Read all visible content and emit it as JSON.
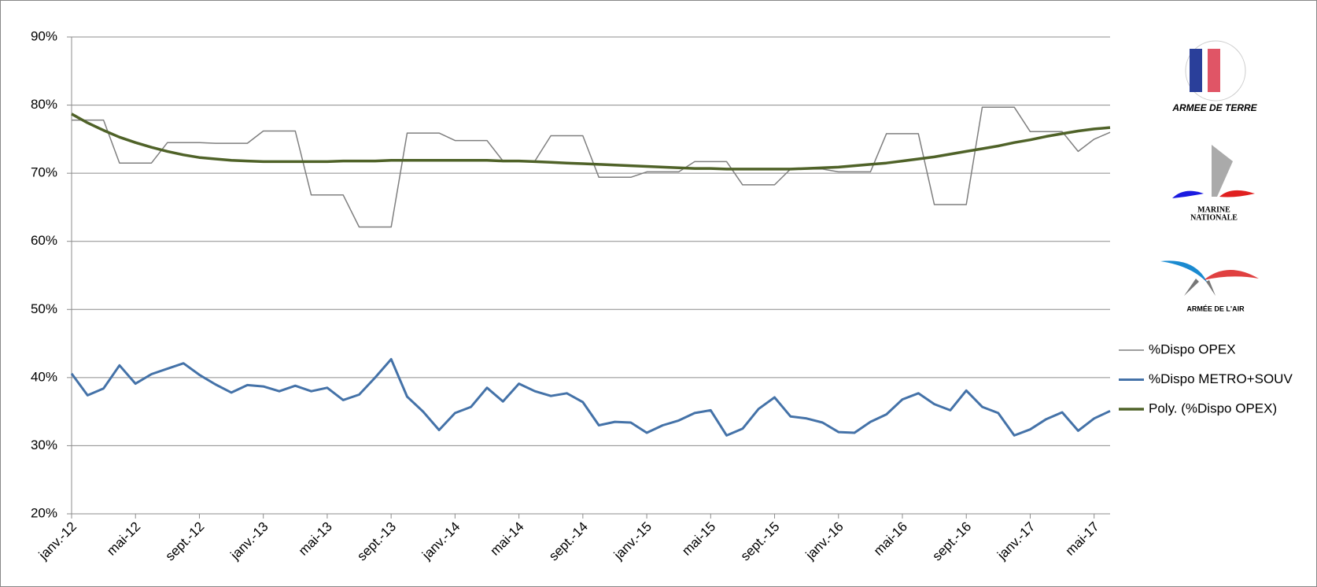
{
  "chart_data": {
    "type": "line",
    "categories": [
      "janv.-12",
      null,
      null,
      null,
      "mai-12",
      null,
      null,
      null,
      "sept.-12",
      null,
      null,
      null,
      "janv.-13",
      null,
      null,
      null,
      "mai-13",
      null,
      null,
      null,
      "sept.-13",
      null,
      null,
      null,
      "janv.-14",
      null,
      null,
      null,
      "mai-14",
      null,
      null,
      null,
      "sept.-14",
      null,
      null,
      null,
      "janv.-15",
      null,
      null,
      null,
      "mai-15",
      null,
      null,
      null,
      "sept.-15",
      null,
      null,
      null,
      "janv.-16",
      null,
      null,
      null,
      "mai-16",
      null,
      null,
      null,
      "sept.-16",
      null,
      null,
      null,
      "janv.-17",
      null,
      null,
      null,
      "mai-17",
      null
    ],
    "series": [
      {
        "name": "%Dispo OPEX",
        "color": "#7f7f7f",
        "width": 1.5,
        "values": [
          77.8,
          77.8,
          77.8,
          71.5,
          71.5,
          71.5,
          74.5,
          74.5,
          74.5,
          74.4,
          74.4,
          74.4,
          76.2,
          76.2,
          76.2,
          66.8,
          66.8,
          66.8,
          62.1,
          62.1,
          62.1,
          75.9,
          75.9,
          75.9,
          74.8,
          74.8,
          74.8,
          71.8,
          71.8,
          71.8,
          75.5,
          75.5,
          75.5,
          69.4,
          69.4,
          69.4,
          70.2,
          70.2,
          70.2,
          71.7,
          71.7,
          71.7,
          68.3,
          68.3,
          68.3,
          70.6,
          70.6,
          70.6,
          70.2,
          70.2,
          70.2,
          75.8,
          75.8,
          75.8,
          65.4,
          65.4,
          65.4,
          79.7,
          79.7,
          79.7,
          76.1,
          76.1,
          76.1,
          73.2,
          75.0,
          76.0
        ]
      },
      {
        "name": "%Dispo METRO+SOUV",
        "color": "#4472a8",
        "width": 3,
        "values": [
          40.6,
          37.4,
          38.4,
          41.8,
          39.1,
          40.5,
          41.3,
          42.1,
          40.4,
          39.0,
          37.8,
          38.9,
          38.7,
          38.0,
          38.8,
          38.0,
          38.5,
          36.7,
          37.5,
          40.0,
          42.7,
          37.2,
          35.0,
          32.3,
          34.8,
          35.7,
          38.5,
          36.5,
          39.1,
          38.0,
          37.3,
          37.7,
          36.4,
          33.0,
          33.5,
          33.4,
          31.9,
          33.0,
          33.7,
          34.8,
          35.2,
          31.5,
          32.5,
          35.4,
          37.1,
          34.3,
          34.0,
          33.4,
          32.0,
          31.9,
          33.5,
          34.6,
          36.8,
          37.7,
          36.1,
          35.2,
          38.1,
          35.7,
          34.8,
          31.5,
          32.4,
          33.9,
          34.9,
          32.2,
          34.0,
          35.1
        ]
      },
      {
        "name": "Poly. (%Dispo OPEX)",
        "color": "#4f6228",
        "width": 3.5,
        "values": [
          78.7,
          77.4,
          76.3,
          75.3,
          74.5,
          73.8,
          73.2,
          72.7,
          72.3,
          72.1,
          71.9,
          71.8,
          71.7,
          71.7,
          71.7,
          71.7,
          71.7,
          71.8,
          71.8,
          71.8,
          71.9,
          71.9,
          71.9,
          71.9,
          71.9,
          71.9,
          71.9,
          71.8,
          71.8,
          71.7,
          71.6,
          71.5,
          71.4,
          71.3,
          71.2,
          71.1,
          71.0,
          70.9,
          70.8,
          70.7,
          70.7,
          70.6,
          70.6,
          70.6,
          70.6,
          70.6,
          70.7,
          70.8,
          70.9,
          71.1,
          71.3,
          71.5,
          71.8,
          72.1,
          72.4,
          72.8,
          73.2,
          73.6,
          74.0,
          74.5,
          74.9,
          75.4,
          75.8,
          76.2,
          76.5,
          76.7
        ]
      }
    ],
    "ylim": [
      20,
      90
    ],
    "yticks": [
      {
        "value": 20,
        "label": "20%"
      },
      {
        "value": 30,
        "label": "30%"
      },
      {
        "value": 40,
        "label": "40%"
      },
      {
        "value": 50,
        "label": "50%"
      },
      {
        "value": 60,
        "label": "60%"
      },
      {
        "value": 70,
        "label": "70%"
      },
      {
        "value": 80,
        "label": "80%"
      },
      {
        "value": 90,
        "label": "90%"
      }
    ],
    "grid": true,
    "legend": "right",
    "annotations": [
      "ARMEE DE TERRE",
      "MARINE",
      "NATIONALE",
      "ARMÉE DE L'AIR"
    ]
  }
}
